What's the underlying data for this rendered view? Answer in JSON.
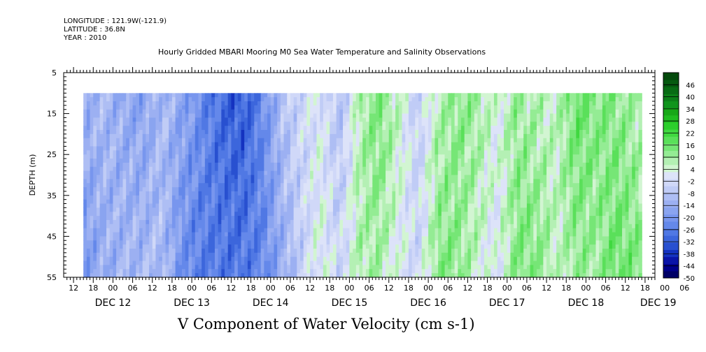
{
  "header": {
    "longitude": "LONGITUDE : 121.9W(-121.9)",
    "latitude": "LATITUDE : 36.8N",
    "year": "YEAR : 2010"
  },
  "chart_data": {
    "type": "heatmap",
    "title": "Hourly Gridded MBARI Mooring M0 Sea Water Temperature and Salinity Observations",
    "xlabel": "V Component of Water Velocity (cm s-1)",
    "ylabel": "DEPTH (m)",
    "ylim": [
      5,
      55
    ],
    "yticks": [
      5,
      15,
      25,
      35,
      45,
      55
    ],
    "x_start_hours_from_dec12_00": -15,
    "x_end_hours_from_dec12_00": 165,
    "data_start_hours_from_dec12_00": -9,
    "data_end_hours_from_dec12_00": 161,
    "data_top_depth_m": 10,
    "hour_tick_labels": [
      "12",
      "18",
      "00",
      "06",
      "12",
      "18",
      "00",
      "06",
      "12",
      "18",
      "00",
      "06",
      "12",
      "18",
      "00",
      "06",
      "12",
      "18",
      "00",
      "06",
      "12",
      "18",
      "00",
      "06",
      "12",
      "18",
      "00",
      "06",
      "12",
      "18",
      "00",
      "06"
    ],
    "date_labels": [
      "DEC 12",
      "DEC 13",
      "DEC 14",
      "DEC 15",
      "DEC 16",
      "DEC 17",
      "DEC 18",
      "DEC 19"
    ],
    "colorbar_ticks": [
      46,
      40,
      34,
      28,
      22,
      16,
      10,
      4,
      -2,
      -8,
      -14,
      -20,
      -26,
      -32,
      -38,
      -44,
      -50
    ],
    "colorbar_range": [
      -50,
      52
    ],
    "colorbar_colors": [
      "#000066",
      "#00008a",
      "#0a14a8",
      "#1432c0",
      "#2850d0",
      "#3c66dc",
      "#5078e4",
      "#6488ea",
      "#7896ee",
      "#8aa4f0",
      "#9cb0f2",
      "#aebef4",
      "#c0ccf6",
      "#d0d8f8",
      "#dde3f9",
      "#d2f5d2",
      "#b4f0b4",
      "#94ec94",
      "#76e676",
      "#5ae05a",
      "#40d840",
      "#2cce2c",
      "#20bc20",
      "#18a818",
      "#10941c",
      "#0c8018",
      "#086c14",
      "#065a10",
      "#044a0c"
    ],
    "v_profile_by_time": [
      {
        "hour": -9,
        "v": -16
      },
      {
        "hour": -3,
        "v": -12
      },
      {
        "hour": 3,
        "v": -13
      },
      {
        "hour": 9,
        "v": -14
      },
      {
        "hour": 15,
        "v": -10
      },
      {
        "hour": 21,
        "v": -18
      },
      {
        "hour": 27,
        "v": -24
      },
      {
        "hour": 33,
        "v": -28
      },
      {
        "hour": 39,
        "v": -30
      },
      {
        "hour": 45,
        "v": -24
      },
      {
        "hour": 51,
        "v": -12
      },
      {
        "hour": 57,
        "v": -4
      },
      {
        "hour": 63,
        "v": 2
      },
      {
        "hour": 69,
        "v": -6
      },
      {
        "hour": 75,
        "v": 8
      },
      {
        "hour": 81,
        "v": 12
      },
      {
        "hour": 87,
        "v": 4
      },
      {
        "hour": 93,
        "v": -4
      },
      {
        "hour": 99,
        "v": 10
      },
      {
        "hour": 105,
        "v": 12
      },
      {
        "hour": 111,
        "v": 8
      },
      {
        "hour": 117,
        "v": 2
      },
      {
        "hour": 123,
        "v": 12
      },
      {
        "hour": 129,
        "v": 10
      },
      {
        "hour": 135,
        "v": 6
      },
      {
        "hour": 141,
        "v": 14
      },
      {
        "hour": 147,
        "v": 12
      },
      {
        "hour": 153,
        "v": 14
      },
      {
        "hour": 161,
        "v": 10
      }
    ]
  }
}
